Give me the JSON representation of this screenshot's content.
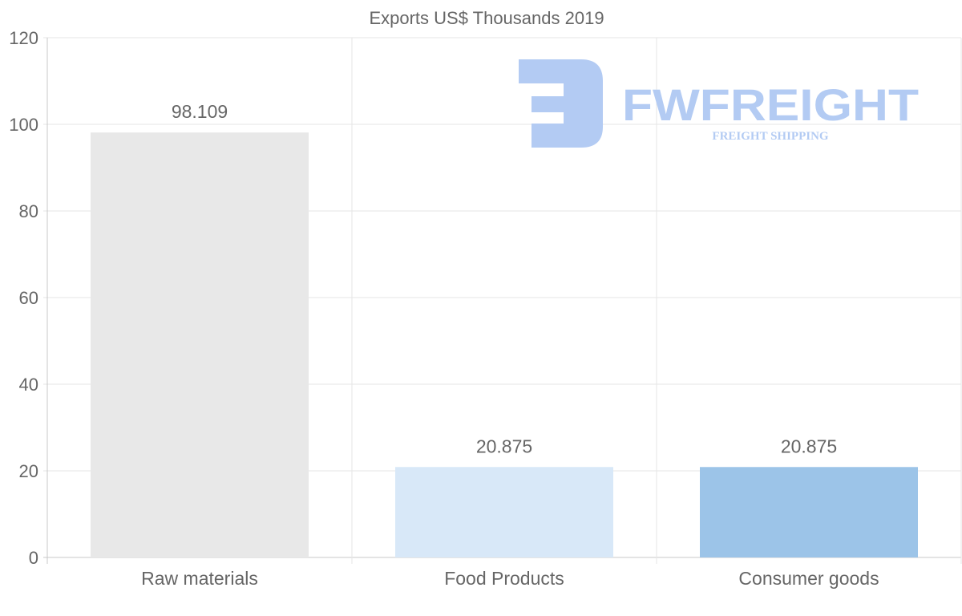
{
  "chart_data": {
    "type": "bar",
    "title": "Exports US$ Thousands 2019",
    "categories": [
      "Raw materials",
      "Food Products",
      "Consumer goods"
    ],
    "values": [
      98.109,
      20.875,
      20.875
    ],
    "data_labels": [
      "98.109",
      "20.875",
      "20.875"
    ],
    "colors": [
      "#e8e8e8",
      "#d8e8f8",
      "#9cc4e8"
    ],
    "xlabel": "",
    "ylabel": "",
    "ylim": [
      0,
      120
    ],
    "yticks": [
      0,
      20,
      40,
      60,
      80,
      100,
      120
    ],
    "grid": true,
    "legend": "none"
  },
  "watermark": {
    "brand": "FWFREIGHT",
    "tagline": "FREIGHT SHIPPING",
    "color": "#b3cbf3"
  }
}
